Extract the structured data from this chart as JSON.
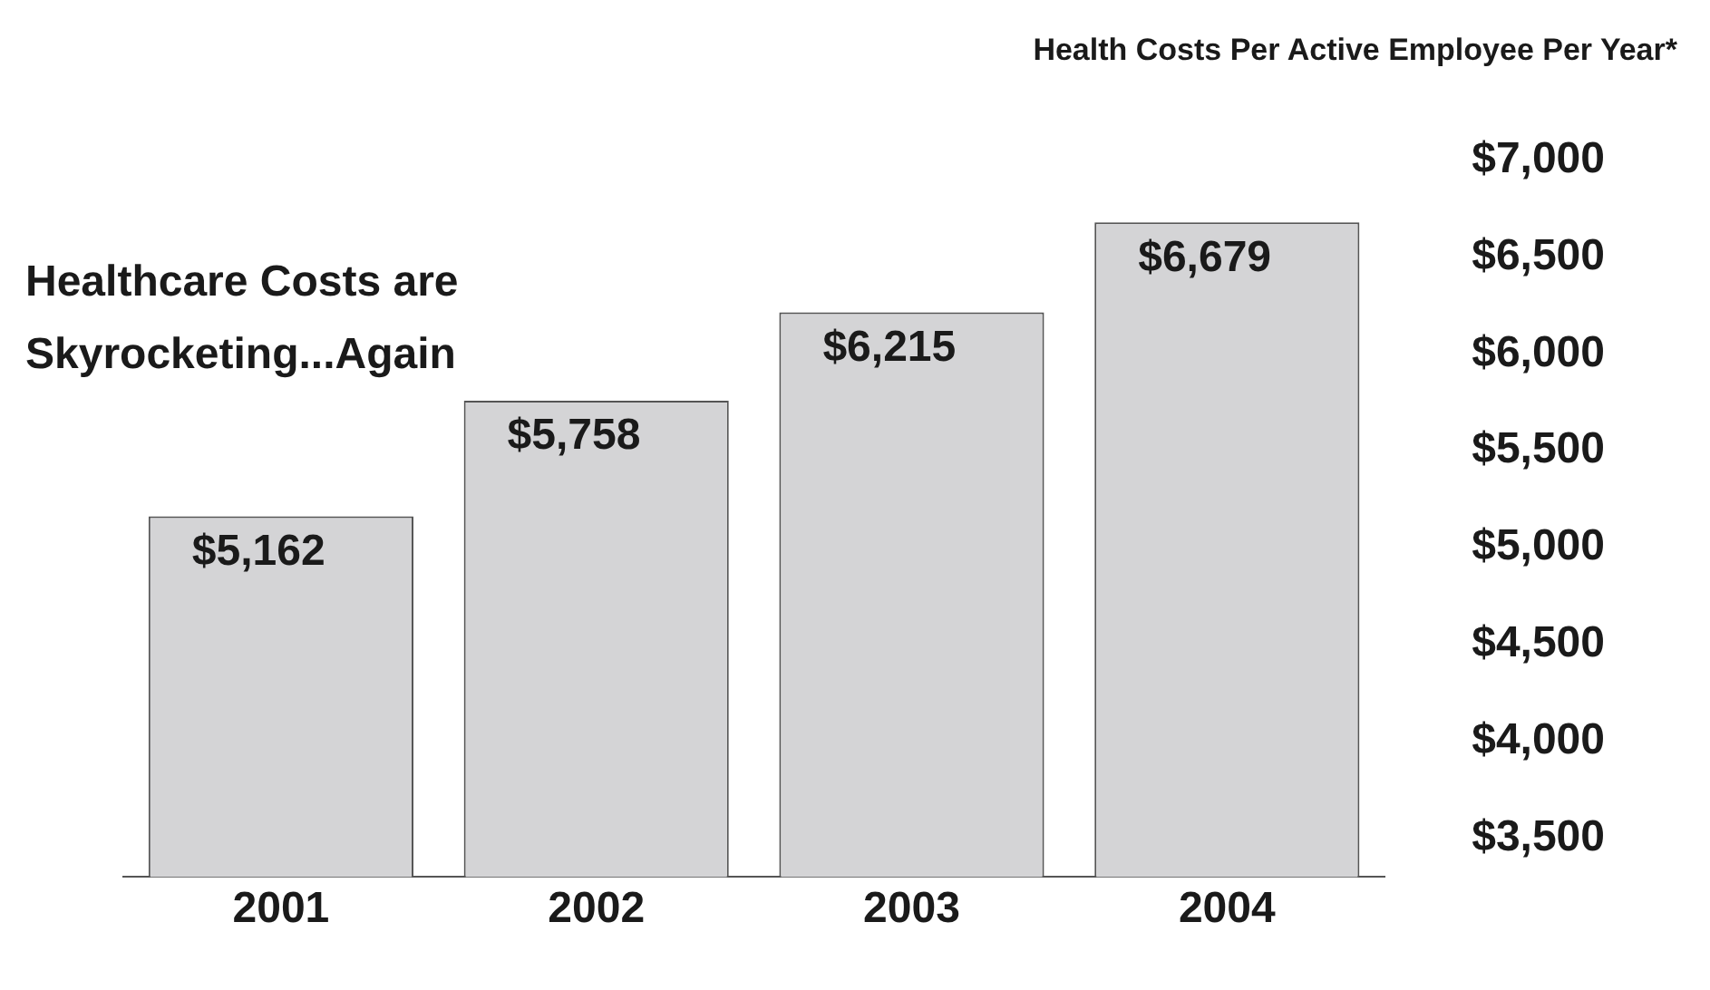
{
  "chart_data": {
    "type": "bar",
    "title": "Health Costs Per Active Employee Per Year*",
    "annotations": [
      "Healthcare Costs are Skyrocketing...Again"
    ],
    "categories": [
      "2001",
      "2002",
      "2003",
      "2004"
    ],
    "values": [
      5162,
      5758,
      6215,
      6679
    ],
    "value_labels": [
      "$5,162",
      "$5,758",
      "$6,215",
      "$6,679"
    ],
    "color": "#d4d4d6",
    "ylim": [
      3300,
      7000
    ],
    "yticks": [
      {
        "value": 3500,
        "label": "$3,500"
      },
      {
        "value": 4000,
        "label": "$4,000"
      },
      {
        "value": 4500,
        "label": "$4,500"
      },
      {
        "value": 5000,
        "label": "$5,000"
      },
      {
        "value": 5500,
        "label": "$5,500"
      },
      {
        "value": 6000,
        "label": "$6,000"
      },
      {
        "value": 6500,
        "label": "$6,500"
      },
      {
        "value": 7000,
        "label": "$7,000"
      }
    ],
    "grid": false,
    "legend": false
  }
}
